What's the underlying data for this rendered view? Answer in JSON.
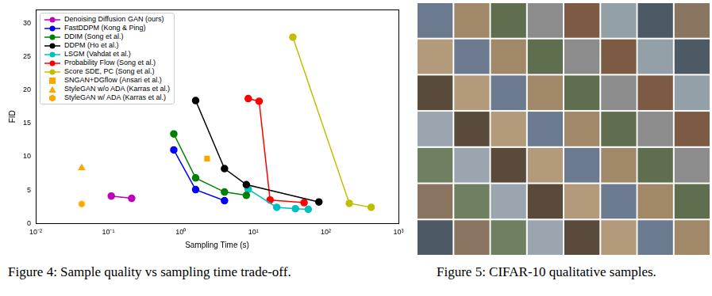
{
  "chart_data": {
    "type": "scatter",
    "x_label": "Sampling Time (s)",
    "y_label": "FID",
    "log": "x",
    "grid": false,
    "legend": "upper left",
    "xlim": [
      0.01,
      1000
    ],
    "xticks": [
      {
        "value": 0.01,
        "label": "10⁻²"
      },
      {
        "value": 0.1,
        "label": "10⁻¹"
      },
      {
        "value": 1,
        "label": "10⁰"
      },
      {
        "value": 10,
        "label": "10¹"
      },
      {
        "value": 100,
        "label": "10²"
      },
      {
        "value": 1000,
        "label": "10³"
      }
    ],
    "ylim": [
      0,
      32
    ],
    "yticks": [
      0,
      5,
      10,
      15,
      20,
      25,
      30
    ],
    "series": [
      {
        "name": "Denoising Diffusion GAN (ours)",
        "color": "#bf00bf",
        "marker": "circle",
        "line_style": "solid",
        "x": [
          0.11,
          0.21
        ],
        "values": [
          4.1,
          3.75
        ]
      },
      {
        "name": "FastDDPM (Kong & Ping)",
        "color": "#0000ff",
        "marker": "circle",
        "line_style": "solid",
        "x": [
          0.8,
          1.6,
          4.0
        ],
        "values": [
          11.0,
          5.05,
          3.4
        ]
      },
      {
        "name": "DDIM (Song et al.)",
        "color": "#008000",
        "marker": "circle",
        "line_style": "solid",
        "x": [
          0.8,
          1.6,
          4.0,
          8.0
        ],
        "values": [
          13.4,
          6.8,
          4.7,
          4.2
        ]
      },
      {
        "name": "DDPM (Ho et al.)",
        "color": "#000000",
        "marker": "circle",
        "line_style": "solid",
        "x": [
          1.6,
          4.0,
          8.0,
          80
        ],
        "values": [
          18.4,
          8.2,
          5.8,
          3.2
        ]
      },
      {
        "name": "LSGM (Vahdat et al.)",
        "color": "#00bfbf",
        "marker": "circle",
        "line_style": "solid",
        "x": [
          8.5,
          21,
          38,
          57
        ],
        "values": [
          5.1,
          2.4,
          2.2,
          2.1
        ]
      },
      {
        "name": "Probability Flow (Song et al.)",
        "color": "#ff0000",
        "marker": "circle",
        "line_style": "solid",
        "x": [
          8.5,
          12,
          17,
          50
        ],
        "values": [
          18.7,
          18.3,
          3.5,
          3.1
        ]
      },
      {
        "name": "Score SDE, PC (Song et al.)",
        "color": "#bfbf00",
        "marker": "circle",
        "line_style": "solid",
        "x": [
          35,
          210,
          420
        ],
        "values": [
          27.9,
          3.0,
          2.4
        ]
      },
      {
        "name": "SNGAN+DGflow (Ansari et al.)",
        "color": "#ffa500",
        "marker": "square",
        "line_style": "none",
        "x": [
          2.3
        ],
        "values": [
          9.7
        ]
      },
      {
        "name": "StyleGAN w/o ADA (Karras et al.)",
        "color": "#ffa500",
        "marker": "triangle",
        "line_style": "none",
        "x": [
          0.043
        ],
        "values": [
          8.3
        ]
      },
      {
        "name": "StyleGAN w/ ADA (Karras et al.)",
        "color": "#ffa500",
        "marker": "hexagon",
        "line_style": "none",
        "x": [
          0.043
        ],
        "values": [
          2.9
        ]
      }
    ]
  },
  "captions": [
    "Figure 4:  Sample quality vs sampling time trade-off.",
    "Figure 5: CIFAR-10 qualitative samples."
  ]
}
